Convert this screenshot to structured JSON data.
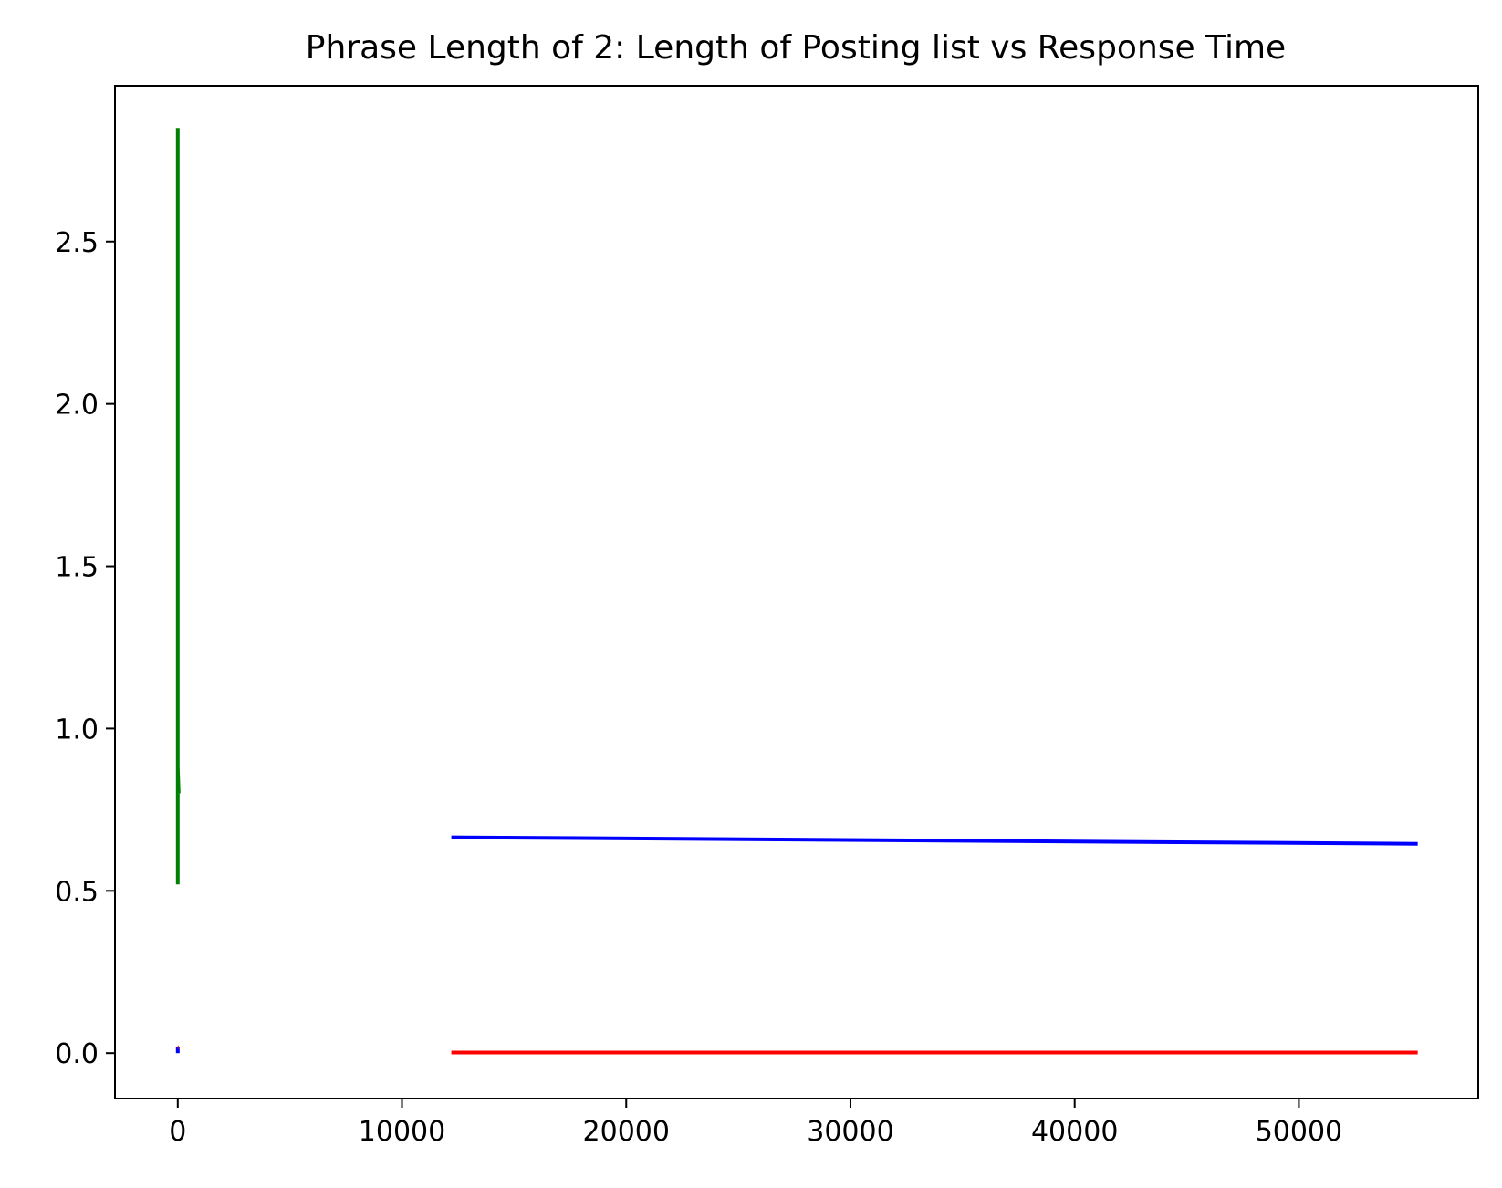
{
  "chart_data": {
    "type": "line",
    "title": "Phrase Length of 2: Length of Posting list vs Response Time",
    "xlabel": "",
    "ylabel": "",
    "xlim": [
      -2800,
      58000
    ],
    "ylim": [
      -0.14,
      2.98
    ],
    "x_ticks": [
      0,
      10000,
      20000,
      30000,
      40000,
      50000
    ],
    "x_tick_labels": [
      "0",
      "10000",
      "20000",
      "30000",
      "40000",
      "50000"
    ],
    "y_ticks": [
      0.0,
      0.5,
      1.0,
      1.5,
      2.0,
      2.5
    ],
    "y_tick_labels": [
      "0.0",
      "0.5",
      "1.0",
      "1.5",
      "2.0",
      "2.5"
    ],
    "grid": false,
    "series": [
      {
        "color": "#008000",
        "points": [
          [
            0,
            0.52
          ],
          [
            0,
            2.85
          ],
          [
            0,
            0.88
          ],
          [
            40,
            0.8
          ]
        ]
      },
      {
        "color": "#0000ff",
        "points": [
          [
            12200,
            0.665
          ],
          [
            55300,
            0.645
          ]
        ]
      },
      {
        "color": "#0000ff",
        "points": [
          [
            0,
            0.0
          ],
          [
            0,
            0.02
          ]
        ]
      },
      {
        "color": "#ff0000",
        "points": [
          [
            12200,
            0.002
          ],
          [
            55300,
            0.002
          ]
        ]
      },
      {
        "color": "#ff0000",
        "points": [
          [
            0,
            0.018
          ],
          [
            40,
            0.018
          ]
        ]
      }
    ]
  }
}
